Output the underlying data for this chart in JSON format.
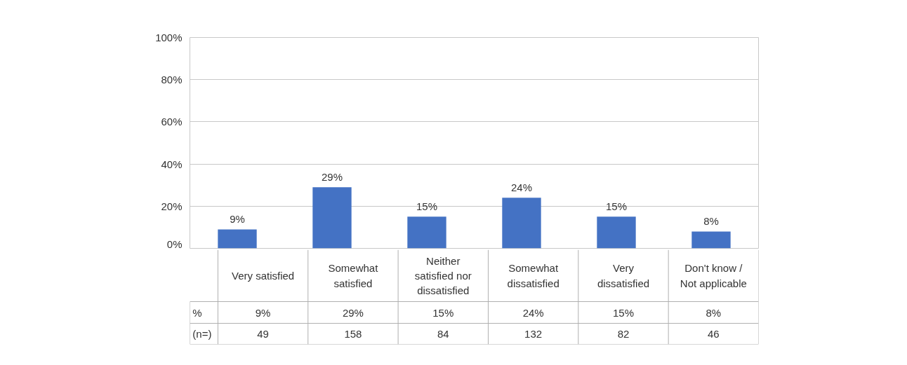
{
  "chart_data": {
    "type": "bar",
    "categories": [
      "Very satisfied",
      "Somewhat satisfied",
      "Neither satisfied nor dissatisfied",
      "Somewhat dissatisfied",
      "Very dissatisfied",
      "Don't know / Not applicable"
    ],
    "values": [
      9,
      29,
      15,
      24,
      15,
      8
    ],
    "value_labels": [
      "9%",
      "29%",
      "15%",
      "24%",
      "15%",
      "8%"
    ],
    "color": "#4472c4",
    "ylim": [
      0,
      100
    ],
    "yticks": [
      {
        "value": 0,
        "label": "0%"
      },
      {
        "value": 20,
        "label": "20%"
      },
      {
        "value": 40,
        "label": "40%"
      },
      {
        "value": 60,
        "label": "60%"
      },
      {
        "value": 80,
        "label": "80%"
      },
      {
        "value": 100,
        "label": "100%"
      }
    ],
    "grid": "y",
    "annotations": [
      "%",
      "(n=)",
      "49",
      "158",
      "84",
      "132",
      "82",
      "46"
    ]
  }
}
